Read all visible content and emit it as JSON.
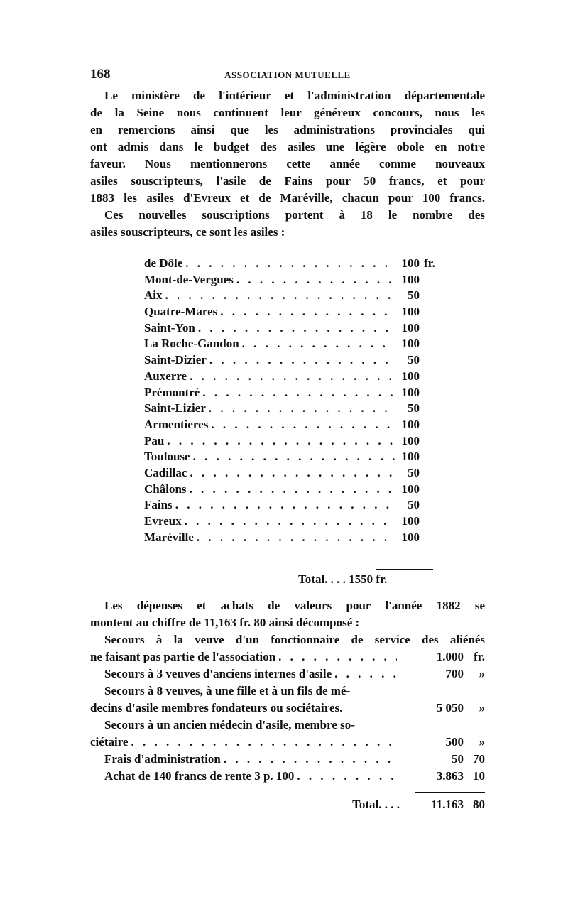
{
  "header": {
    "page_number": "168",
    "running_title": "ASSOCIATION MUTUELLE"
  },
  "para1": [
    "Le ministère de l'intérieur et l'administration départementale",
    "de la Seine nous continuent leur généreux concours, nous les",
    "en remercions ainsi que les administrations provinciales qui",
    "ont admis dans le budget des asiles une légère obole en notre",
    "faveur. Nous mentionnerons cette année comme nouveaux",
    "asiles souscripteurs, l'asile de Fains pour 50 francs, et pour",
    "1883 les asiles d'Evreux et de Maréville, chacun pour 100 francs."
  ],
  "para2": [
    "Ces nouvelles souscriptions portent à 18 le nombre des",
    "asiles souscripteurs, ce sont les asiles :"
  ],
  "asylums": [
    {
      "name": "de Dôle",
      "amount": "100",
      "unit": "fr."
    },
    {
      "name": "Mont-de-Vergues",
      "amount": "100"
    },
    {
      "name": "Aix",
      "amount": "50"
    },
    {
      "name": "Quatre-Mares",
      "amount": "100"
    },
    {
      "name": "Saint-Yon",
      "amount": "100"
    },
    {
      "name": "La Roche-Gandon",
      "amount": "100"
    },
    {
      "name": "Saint-Dizier",
      "amount": "50"
    },
    {
      "name": "Auxerre",
      "amount": "100"
    },
    {
      "name": "Prémontré",
      "amount": "100"
    },
    {
      "name": "Saint-Lizier",
      "amount": "50"
    },
    {
      "name": "Armentieres",
      "amount": "100"
    },
    {
      "name": "Pau",
      "amount": "100"
    },
    {
      "name": "Toulouse",
      "amount": "100"
    },
    {
      "name": "Cadillac",
      "amount": "50"
    },
    {
      "name": "Châlons",
      "amount": "100"
    },
    {
      "name": "Fains",
      "amount": "50"
    },
    {
      "name": "Evreux",
      "amount": "100"
    },
    {
      "name": "Maréville",
      "amount": "100"
    }
  ],
  "asylum_total": "Total. . . . 1550 fr.",
  "para3": [
    "Les dépenses et achats de valeurs pour l'année 1882 se",
    "montent au chiffre de 11,163 fr. 80 ainsi décomposé :"
  ],
  "expenses": {
    "e1_line1": "Secours à la veuve d'un fonctionnaire de service des aliénés",
    "e1_line2": "ne faisant pas partie de l'association",
    "e1_amount": "1.000",
    "e1_unit": "fr.",
    "e2_label": "Secours à 3 veuves d'anciens internes d'asile",
    "e2_amount": "700",
    "e2_unit": "»",
    "e3_line1": "Secours à 8 veuves, à une fille et à un fils de mé-",
    "e3_line2": "decins d'asile membres fondateurs ou sociétaires.",
    "e3_amount": "5 050",
    "e3_unit": "»",
    "e4_line1": "Secours à un ancien médecin d'asile, membre so-",
    "e4_line2": "ciétaire",
    "e4_amount": "500",
    "e4_unit": "»",
    "e5_label": "Frais d'administration",
    "e5_amount": "50",
    "e5_unit": "70",
    "e6_label": "Achat de 140 francs de rente 3 p. 100",
    "e6_amount": "3.863",
    "e6_unit": "10",
    "total_label": "Total. . . .",
    "total_amount": "11.163",
    "total_unit": "80"
  }
}
